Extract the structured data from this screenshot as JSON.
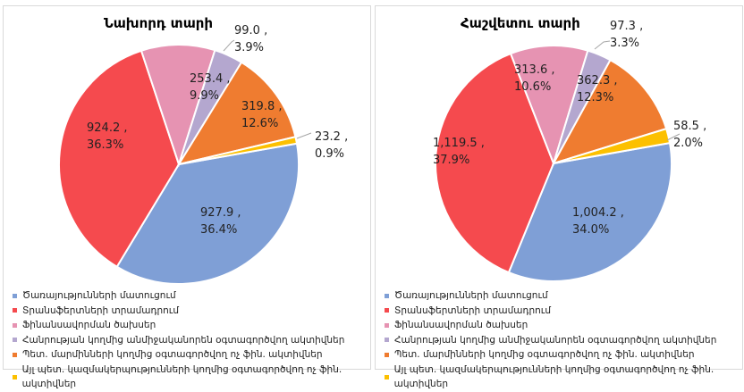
{
  "colors": [
    "#7f9fd6",
    "#f54a4e",
    "#e693b2",
    "#b4a7cf",
    "#ef7c30",
    "#fcc000"
  ],
  "legend": [
    "Ծառայությունների մատուցում",
    "Տրանսֆերտների տրամադրում",
    "Ֆինանսավորման ծախսեր",
    "Հանրության կողմից անմիջականորեն օգտագործվող ակտիվներ",
    "Պետ. մարմինների կողմից օգտագործվող ոչ ֆին. ակտիվներ",
    "Այլ պետ. կազմակերպությունների կողմից օգտագործվող ոչ ֆին. ակտիվներ"
  ],
  "chart_data": [
    {
      "type": "pie",
      "title": "Նախորդ տարի",
      "categories": [
        "Ծառայությունների մատուցում",
        "Տրանսֆերտների տրամադրում",
        "Ֆինանսավորման ծախսեր",
        "Հանրության կողմից անմիջականորեն օգտագործվող ակտիվներ",
        "Պետ. մարմինների կողմից օգտագործվող ոչ ֆին. ակտիվներ",
        "Այլ պետ. կազմակերպությունների կողմից օգտագործվող ոչ ֆին. ակտիվներ"
      ],
      "values": [
        927.9,
        924.2,
        253.4,
        99.0,
        319.8,
        23.2
      ],
      "labels": [
        [
          "927.9 ,",
          "36.4%"
        ],
        [
          "924.2 ,",
          "36.3%"
        ],
        [
          "253.4 ,",
          "9.9%"
        ],
        [
          "99.0 ,",
          "3.9%"
        ],
        [
          "319.8 ,",
          "12.6%"
        ],
        [
          "23.2 ,",
          "0.9%"
        ]
      ],
      "legend_position": "bottom"
    },
    {
      "type": "pie",
      "title": "Հաշվետու տարի",
      "categories": [
        "Ծառայությունների մատուցում",
        "Տրանսֆերտների տրամադրում",
        "Ֆինանսավորման ծախսեր",
        "Հանրության կողմից անմիջականորեն օգտագործվող ակտիվներ",
        "Պետ. մարմինների կողմից օգտագործվող ոչ ֆին. ակտիվներ",
        "Այլ պետ. կազմակերպությունների կողմից օգտագործվող ոչ ֆին. ակտիվներ"
      ],
      "values": [
        1004.2,
        1119.5,
        313.6,
        97.3,
        362.3,
        58.5
      ],
      "labels": [
        [
          "1,004.2 ,",
          "34.0%"
        ],
        [
          "1,119.5 ,",
          "37.9%"
        ],
        [
          "313.6 ,",
          "10.6%"
        ],
        [
          "97.3 ,",
          "3.3%"
        ],
        [
          "362.3 ,",
          "12.3%"
        ],
        [
          "58.5 ,",
          "2.0%"
        ]
      ],
      "legend_position": "bottom"
    }
  ]
}
